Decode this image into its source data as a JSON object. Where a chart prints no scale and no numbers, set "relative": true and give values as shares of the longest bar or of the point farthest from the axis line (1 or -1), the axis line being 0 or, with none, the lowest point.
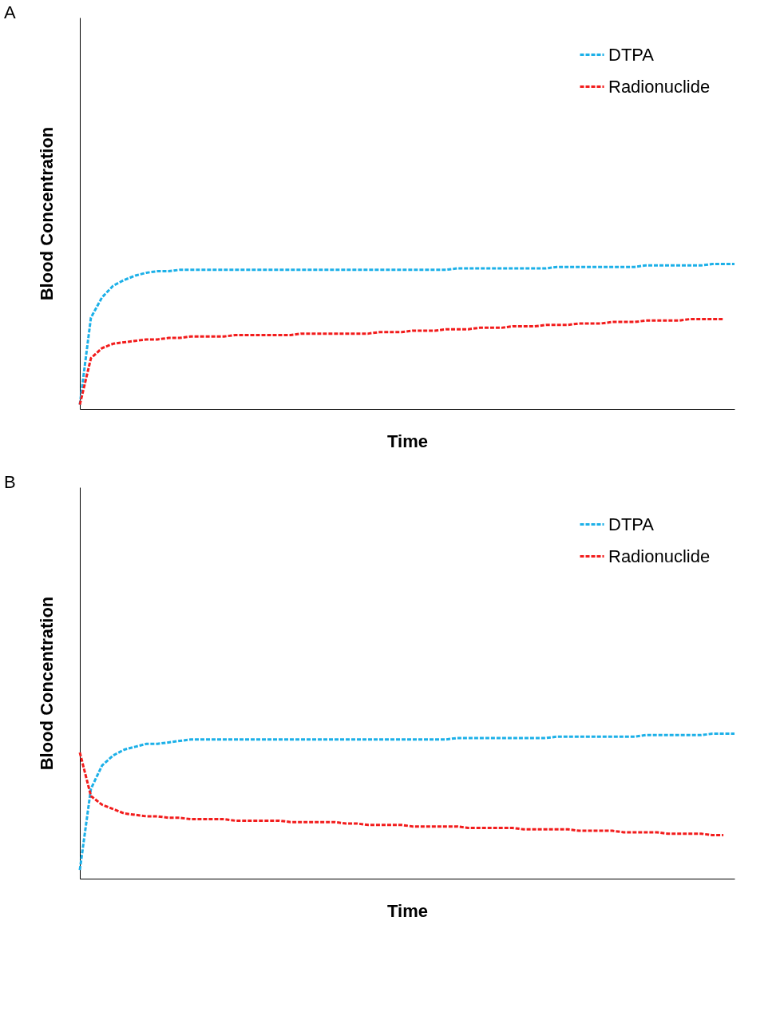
{
  "chart_data": [
    {
      "type": "line",
      "title": "A",
      "xlabel": "Time",
      "ylabel": "Blood Concentration",
      "relative": true,
      "legend": "top right",
      "line_style": "dashed",
      "marker": "none",
      "grid": false,
      "tick_labels": false,
      "categories": [
        null,
        null,
        null,
        null,
        null,
        null,
        null,
        null,
        null,
        null,
        null,
        null,
        null,
        null,
        null,
        null,
        null,
        null,
        null,
        null,
        null,
        null,
        null,
        null,
        null,
        null,
        null,
        null,
        null,
        null,
        null,
        null,
        null,
        null,
        null,
        null,
        null,
        null,
        null,
        null,
        null,
        null,
        null,
        null,
        null,
        null,
        null,
        null,
        null,
        null,
        null,
        null,
        null,
        null,
        null,
        null,
        null,
        null,
        null,
        null
      ],
      "series": [
        {
          "name": "DTPA",
          "color": "#1cb0e8",
          "values": [
            0.03,
            0.63,
            0.77,
            0.85,
            0.89,
            0.92,
            0.94,
            0.95,
            0.95,
            0.96,
            0.96,
            0.96,
            0.96,
            0.96,
            0.96,
            0.96,
            0.96,
            0.96,
            0.96,
            0.96,
            0.96,
            0.96,
            0.96,
            0.96,
            0.96,
            0.96,
            0.96,
            0.96,
            0.96,
            0.96,
            0.96,
            0.96,
            0.96,
            0.96,
            0.97,
            0.97,
            0.97,
            0.97,
            0.97,
            0.97,
            0.97,
            0.97,
            0.97,
            0.98,
            0.98,
            0.98,
            0.98,
            0.98,
            0.98,
            0.98,
            0.98,
            0.99,
            0.99,
            0.99,
            0.99,
            0.99,
            0.99,
            1.0,
            1.0,
            1.0
          ]
        },
        {
          "name": "Radionuclide",
          "color": "#f21c1c",
          "values": [
            0.03,
            0.35,
            0.42,
            0.45,
            0.46,
            0.47,
            0.48,
            0.48,
            0.49,
            0.49,
            0.5,
            0.5,
            0.5,
            0.5,
            0.51,
            0.51,
            0.51,
            0.51,
            0.51,
            0.51,
            0.52,
            0.52,
            0.52,
            0.52,
            0.52,
            0.52,
            0.52,
            0.53,
            0.53,
            0.53,
            0.54,
            0.54,
            0.54,
            0.55,
            0.55,
            0.55,
            0.56,
            0.56,
            0.56,
            0.57,
            0.57,
            0.57,
            0.58,
            0.58,
            0.58,
            0.59,
            0.59,
            0.59,
            0.6,
            0.6,
            0.6,
            0.61,
            0.61,
            0.61,
            0.61,
            0.62,
            0.62,
            0.62,
            0.62,
            null
          ]
        }
      ]
    },
    {
      "type": "line",
      "title": "B",
      "xlabel": "Time",
      "ylabel": "Blood Concentration",
      "relative": true,
      "legend": "top right",
      "line_style": "dashed",
      "marker": "none",
      "grid": false,
      "tick_labels": false,
      "categories": [
        null,
        null,
        null,
        null,
        null,
        null,
        null,
        null,
        null,
        null,
        null,
        null,
        null,
        null,
        null,
        null,
        null,
        null,
        null,
        null,
        null,
        null,
        null,
        null,
        null,
        null,
        null,
        null,
        null,
        null,
        null,
        null,
        null,
        null,
        null,
        null,
        null,
        null,
        null,
        null,
        null,
        null,
        null,
        null,
        null,
        null,
        null,
        null,
        null,
        null,
        null,
        null,
        null,
        null,
        null,
        null,
        null,
        null,
        null,
        null
      ],
      "series": [
        {
          "name": "DTPA",
          "color": "#1cb0e8",
          "values": [
            0.06,
            0.62,
            0.78,
            0.85,
            0.89,
            0.91,
            0.93,
            0.93,
            0.94,
            0.95,
            0.96,
            0.96,
            0.96,
            0.96,
            0.96,
            0.96,
            0.96,
            0.96,
            0.96,
            0.96,
            0.96,
            0.96,
            0.96,
            0.96,
            0.96,
            0.96,
            0.96,
            0.96,
            0.96,
            0.96,
            0.96,
            0.96,
            0.96,
            0.96,
            0.97,
            0.97,
            0.97,
            0.97,
            0.97,
            0.97,
            0.97,
            0.97,
            0.97,
            0.98,
            0.98,
            0.98,
            0.98,
            0.98,
            0.98,
            0.98,
            0.98,
            0.99,
            0.99,
            0.99,
            0.99,
            0.99,
            0.99,
            1.0,
            1.0,
            1.0
          ]
        },
        {
          "name": "Radionuclide",
          "color": "#f21c1c",
          "values": [
            0.87,
            0.57,
            0.51,
            0.48,
            0.45,
            0.44,
            0.43,
            0.43,
            0.42,
            0.42,
            0.41,
            0.41,
            0.41,
            0.41,
            0.4,
            0.4,
            0.4,
            0.4,
            0.4,
            0.39,
            0.39,
            0.39,
            0.39,
            0.39,
            0.38,
            0.38,
            0.37,
            0.37,
            0.37,
            0.37,
            0.36,
            0.36,
            0.36,
            0.36,
            0.36,
            0.35,
            0.35,
            0.35,
            0.35,
            0.35,
            0.34,
            0.34,
            0.34,
            0.34,
            0.34,
            0.33,
            0.33,
            0.33,
            0.33,
            0.32,
            0.32,
            0.32,
            0.32,
            0.31,
            0.31,
            0.31,
            0.31,
            0.3,
            0.3,
            null
          ]
        }
      ]
    }
  ]
}
